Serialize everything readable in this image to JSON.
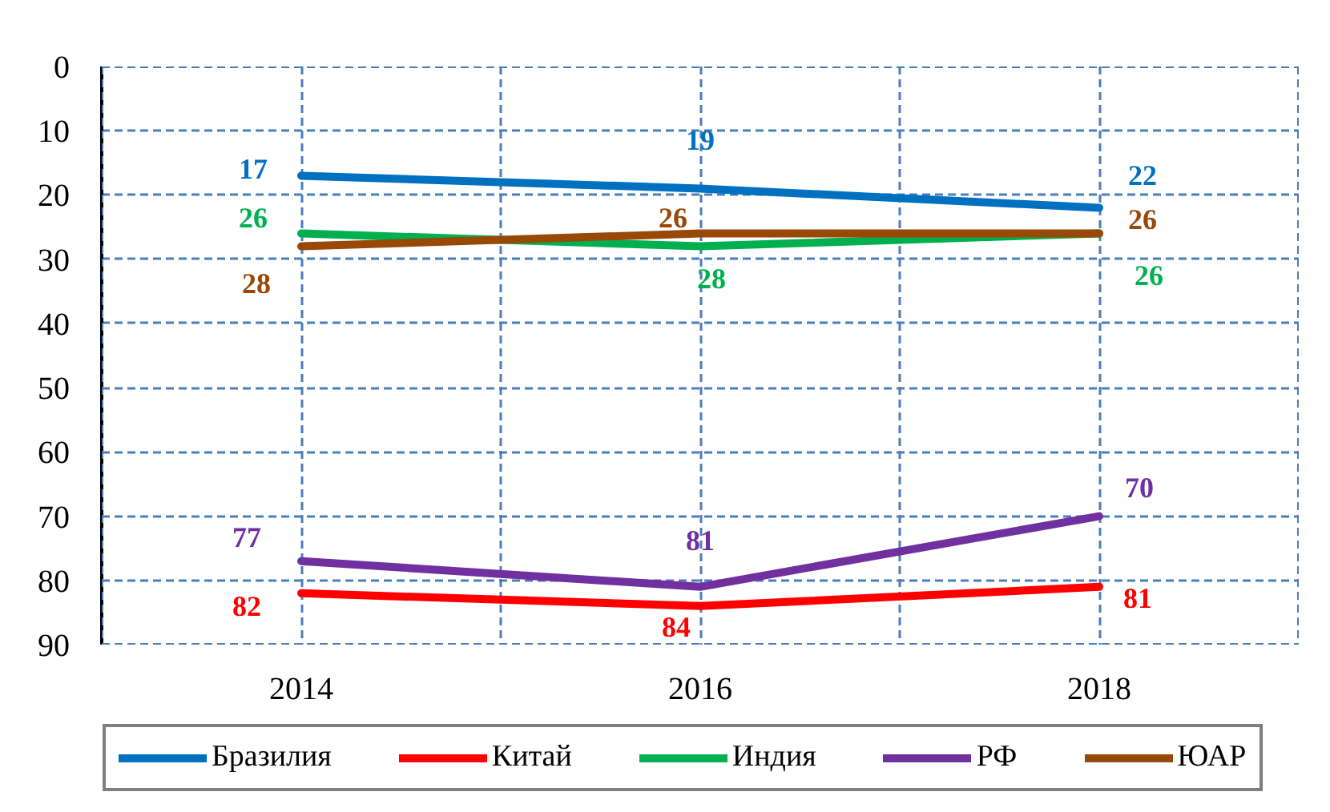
{
  "chart_data": {
    "type": "line",
    "x": [
      2014,
      2016,
      2018
    ],
    "xlim": [
      2013,
      2019
    ],
    "xticks": [
      {
        "value": 2013,
        "label": null
      },
      2014,
      {
        "value": 2015,
        "label": null
      },
      2016,
      {
        "value": 2017,
        "label": null
      },
      2018,
      {
        "value": 2019,
        "label": null
      }
    ],
    "ylim": [
      90,
      0
    ],
    "yticks": [
      0,
      10,
      20,
      30,
      40,
      50,
      60,
      70,
      80,
      90
    ],
    "series": [
      {
        "name": "Бразилия",
        "color": "#0070c0",
        "values": [
          17,
          19,
          22
        ]
      },
      {
        "name": "Китай",
        "color": "#ff0000",
        "values": [
          82,
          84,
          81
        ]
      },
      {
        "name": "Индия",
        "color": "#00b050",
        "values": [
          26,
          28,
          26
        ]
      },
      {
        "name": "РФ",
        "color": "#7030a0",
        "values": [
          77,
          81,
          70
        ]
      },
      {
        "name": "ЮАР",
        "color": "#984807",
        "values": [
          28,
          26,
          26
        ]
      }
    ],
    "data_labels": true,
    "grid": true,
    "legend": "bottom",
    "line_style": "solid"
  }
}
